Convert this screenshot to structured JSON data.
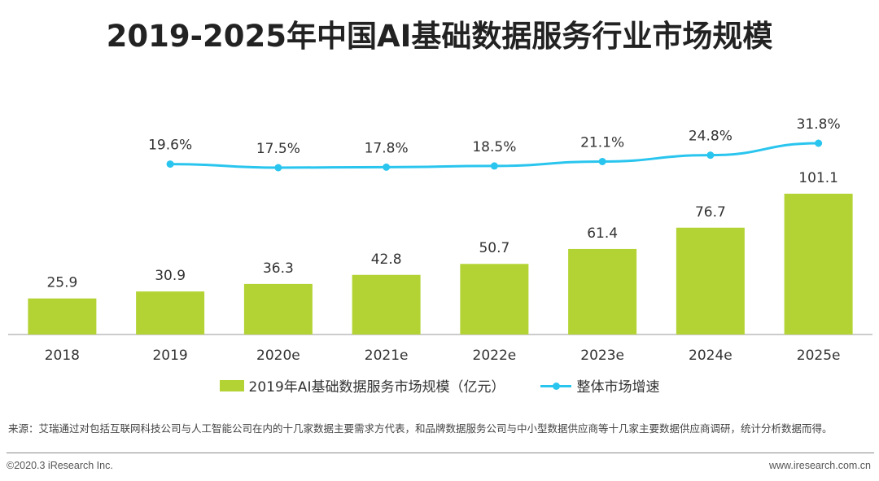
{
  "title": "2019-2025年中国AI基础数据服务行业市场规模",
  "chart_data": {
    "type": "bar",
    "title": "2019-2025年中国AI基础数据服务行业市场规模",
    "categories": [
      "2018",
      "2019",
      "2020e",
      "2021e",
      "2022e",
      "2023e",
      "2024e",
      "2025e"
    ],
    "series": [
      {
        "name": "2019年AI基础数据服务市场规模（亿元）",
        "type": "bar",
        "values": [
          25.9,
          30.9,
          36.3,
          42.8,
          50.7,
          61.4,
          76.7,
          101.1
        ],
        "labels": [
          "25.9",
          "30.9",
          "36.3",
          "42.8",
          "50.7",
          "61.4",
          "76.7",
          "101.1"
        ],
        "color": "#b3d334"
      },
      {
        "name": "整体市场增速",
        "type": "line",
        "values": [
          null,
          19.6,
          17.5,
          17.8,
          18.5,
          21.1,
          24.8,
          31.8
        ],
        "labels": [
          "",
          "19.6%",
          "17.5%",
          "17.8%",
          "18.5%",
          "21.1%",
          "24.8%",
          "31.8%"
        ],
        "color": "#29c5ee"
      }
    ],
    "ylim": [
      0,
      101.1
    ],
    "y2lim": [
      0,
      31.8
    ],
    "grid": false,
    "legend": "bottom-center",
    "xlabel": "",
    "ylabel": ""
  },
  "legend": {
    "bar_label": "2019年AI基础数据服务市场规模（亿元）",
    "line_label": "整体市场增速"
  },
  "source": "来源：艾瑞通过对包括互联网科技公司与人工智能公司在内的十几家数据主要需求方代表，和品牌数据服务公司与中小型数据供应商等十几家主要数据供应商调研，统计分析数据而得。",
  "footer": {
    "copyright": "©2020.3 iResearch Inc.",
    "website": "www.iresearch.com.cn"
  }
}
